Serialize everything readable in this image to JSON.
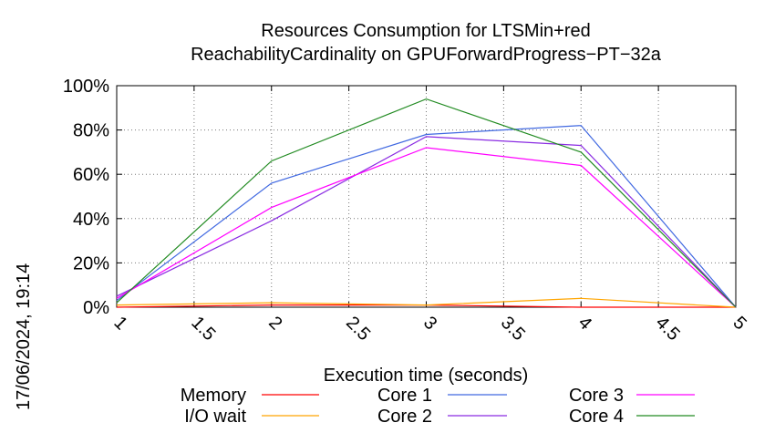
{
  "chart_data": {
    "type": "line",
    "title": [
      "Resources Consumption for LTSMin+red",
      "ReachabilityCardinality on GPUForwardProgress−PT−32a"
    ],
    "xlabel": "Execution time (seconds)",
    "ylabel": "",
    "xlim": [
      1,
      5
    ],
    "ylim": [
      0,
      100
    ],
    "x_ticks": [
      "1",
      "1.5",
      "2",
      "2.5",
      "3",
      "3.5",
      "4",
      "4.5",
      "5"
    ],
    "y_ticks": [
      "0%",
      "20%",
      "40%",
      "60%",
      "80%",
      "100%"
    ],
    "grid": true,
    "legend_position": "bottom",
    "x": [
      1,
      2,
      3,
      4,
      5
    ],
    "series": [
      {
        "name": "Memory",
        "color": "#ff0000",
        "values": [
          0,
          1,
          1,
          0,
          0
        ]
      },
      {
        "name": "I/O wait",
        "color": "#ffa500",
        "values": [
          1,
          2,
          1,
          4,
          0
        ]
      },
      {
        "name": "Core 1",
        "color": "#4169e1",
        "values": [
          3,
          56,
          78,
          82,
          0
        ]
      },
      {
        "name": "Core 2",
        "color": "#8a2be2",
        "values": [
          5,
          39,
          77,
          73,
          0
        ]
      },
      {
        "name": "Core 3",
        "color": "#ff00ff",
        "values": [
          4,
          45,
          72,
          64,
          0
        ]
      },
      {
        "name": "Core 4",
        "color": "#228b22",
        "values": [
          2,
          66,
          94,
          70,
          0
        ]
      }
    ]
  },
  "side_label": "17/06/2024, 19:14"
}
